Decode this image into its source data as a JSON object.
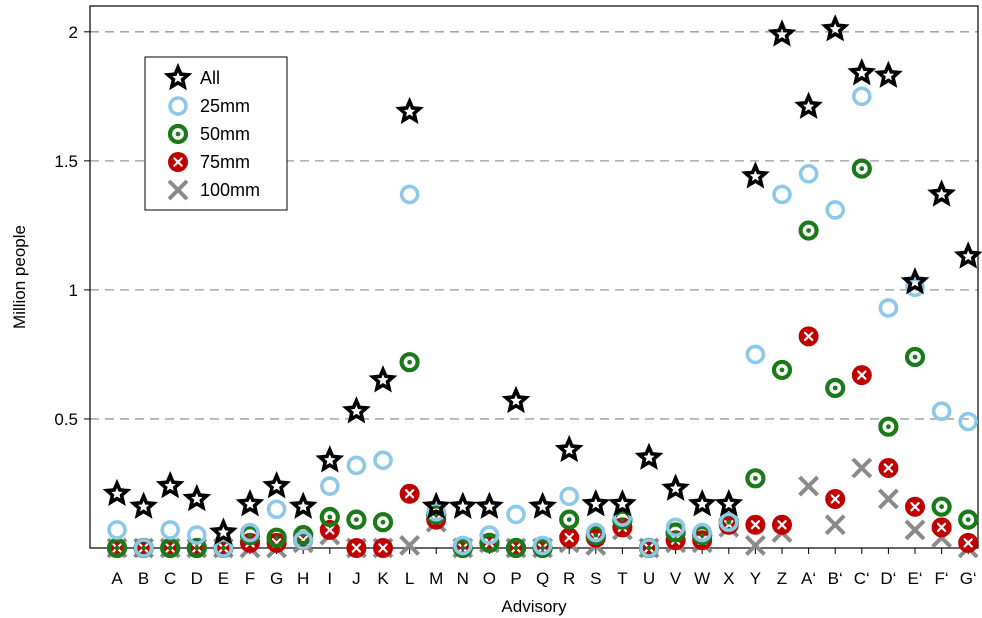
{
  "chart_data": {
    "type": "scatter",
    "xlabel": "Advisory",
    "ylabel": "Million people",
    "ylim": [
      0,
      2.1
    ],
    "yticks": [
      0.5,
      1,
      1.5,
      2
    ],
    "ytick_labels": [
      "0.5",
      "1",
      "1.5",
      "2"
    ],
    "grid": "horizontal dashed",
    "legend_position": "top-left",
    "categories": [
      "A",
      "B",
      "C",
      "D",
      "E",
      "F",
      "G",
      "H",
      "I",
      "J",
      "K",
      "L",
      "M",
      "N",
      "O",
      "P",
      "Q",
      "R",
      "S",
      "T",
      "U",
      "V",
      "W",
      "X",
      "Y",
      "Z",
      "A‘",
      "B‘",
      "C‘",
      "D‘",
      "E‘",
      "F‘",
      "G‘"
    ],
    "series": [
      {
        "name": "All",
        "marker": "star",
        "color": "#000000",
        "values": [
          0.21,
          0.16,
          0.24,
          0.19,
          0.06,
          0.17,
          0.24,
          0.16,
          0.34,
          0.53,
          0.65,
          1.69,
          0.16,
          0.16,
          0.16,
          0.57,
          0.16,
          0.38,
          0.17,
          0.17,
          0.35,
          0.23,
          0.17,
          0.17,
          1.44,
          1.99,
          1.71,
          2.01,
          1.84,
          1.83,
          1.03,
          1.37,
          1.13
        ]
      },
      {
        "name": "25mm",
        "marker": "ring",
        "color": "#8EC8E8",
        "values": [
          0.07,
          0.0,
          0.07,
          0.05,
          0.0,
          0.06,
          0.15,
          0.03,
          0.24,
          0.32,
          0.34,
          1.37,
          0.14,
          0.01,
          0.05,
          0.13,
          0.01,
          0.2,
          0.06,
          0.12,
          0.0,
          0.08,
          0.06,
          0.1,
          0.75,
          1.37,
          1.45,
          1.31,
          1.75,
          0.93,
          1.01,
          0.53,
          0.49
        ]
      },
      {
        "name": "50mm",
        "marker": "ring-dot",
        "color": "#1A7A1A",
        "values": [
          0.0,
          0.0,
          0.0,
          0.0,
          0.0,
          0.05,
          0.04,
          0.05,
          0.12,
          0.11,
          0.1,
          0.72,
          0.13,
          0.0,
          0.02,
          0.0,
          0.0,
          0.11,
          0.05,
          0.11,
          0.0,
          0.06,
          0.05,
          0.1,
          0.27,
          0.69,
          1.23,
          0.62,
          1.47,
          0.47,
          0.74,
          0.16,
          0.11
        ]
      },
      {
        "name": "75mm",
        "marker": "circle-x",
        "color": "#C00000",
        "values": [
          0.0,
          0.0,
          0.0,
          0.0,
          0.0,
          0.02,
          0.02,
          0.03,
          0.07,
          0.0,
          0.0,
          0.21,
          0.11,
          0.0,
          0.02,
          0.0,
          0.0,
          0.04,
          0.04,
          0.08,
          0.0,
          0.03,
          0.03,
          0.09,
          0.09,
          0.09,
          0.82,
          0.19,
          0.67,
          0.31,
          0.16,
          0.08,
          0.02
        ]
      },
      {
        "name": "100mm",
        "marker": "x",
        "color": "#8A8A8A",
        "values": [
          0.0,
          0.0,
          0.0,
          0.0,
          0.0,
          0.0,
          0.0,
          0.02,
          0.05,
          0.0,
          0.0,
          0.01,
          0.1,
          0.0,
          0.02,
          0.0,
          0.0,
          0.02,
          0.01,
          0.07,
          0.0,
          0.02,
          0.02,
          0.08,
          0.01,
          0.06,
          0.24,
          0.09,
          0.31,
          0.19,
          0.07,
          0.04,
          0.0
        ]
      }
    ]
  }
}
